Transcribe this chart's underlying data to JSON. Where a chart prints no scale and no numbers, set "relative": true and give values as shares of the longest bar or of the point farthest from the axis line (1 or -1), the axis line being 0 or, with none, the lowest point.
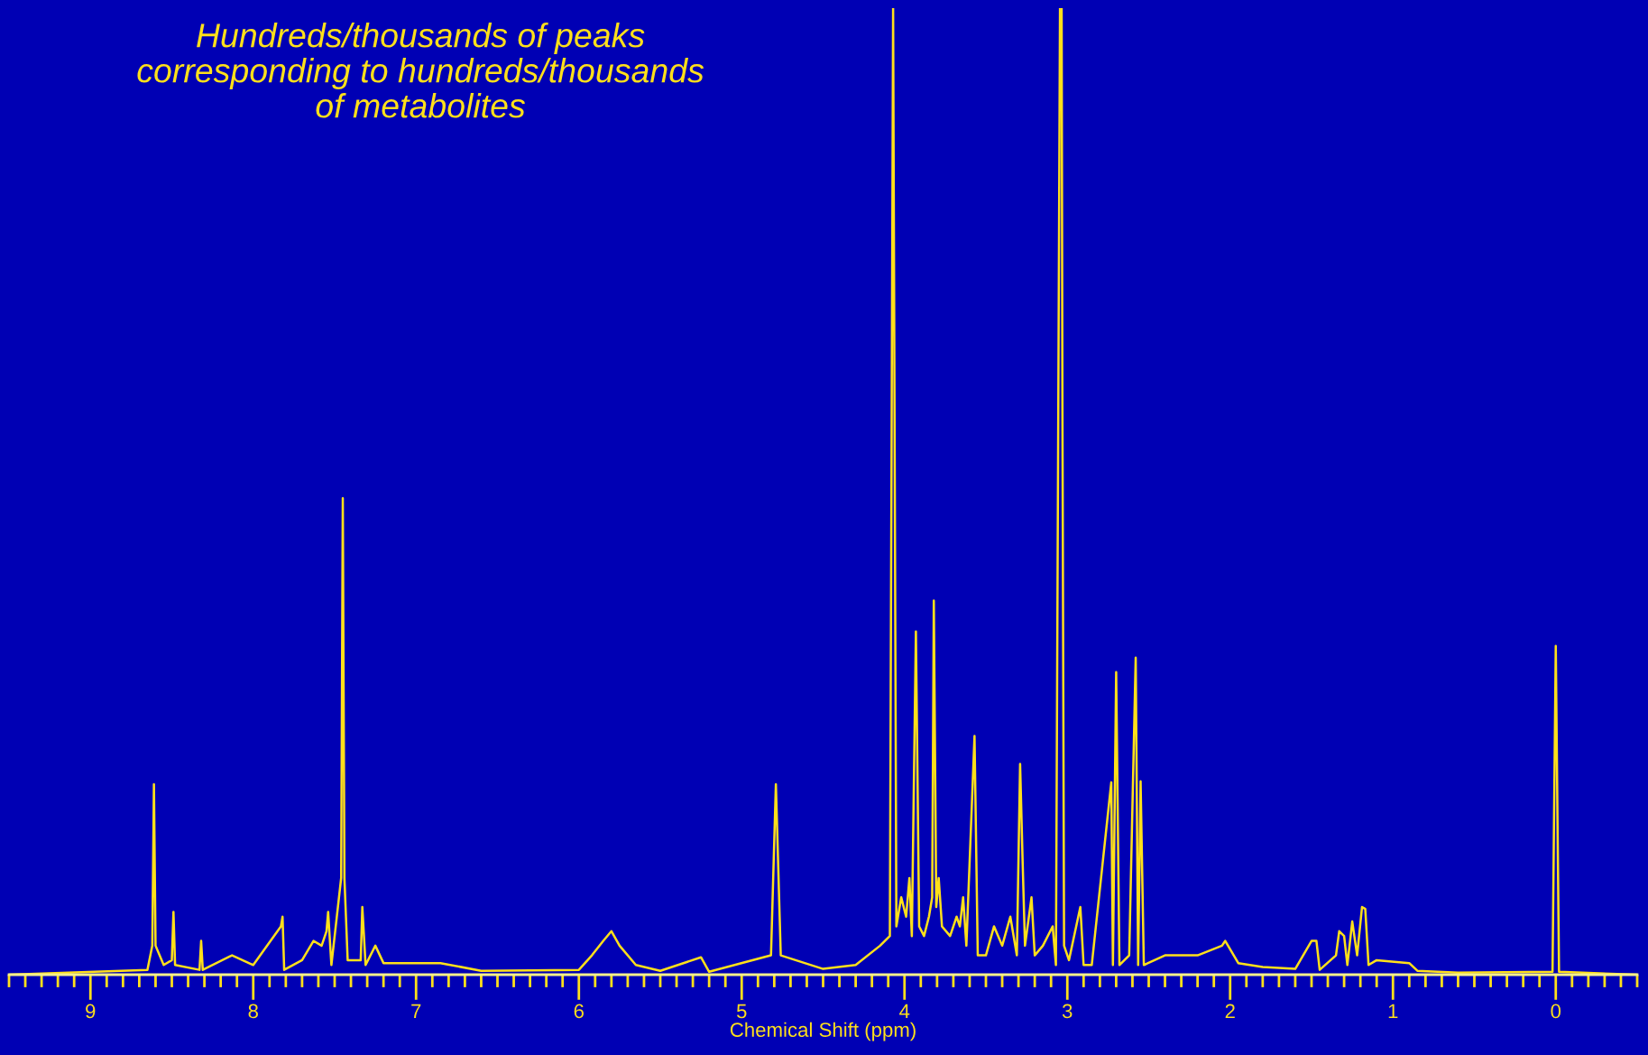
{
  "chart_data": {
    "type": "line",
    "relative": true,
    "xlabel": "Chemical Shift (ppm)",
    "annotations": [
      "Hundreds/thousands of peaks\ncorresponding to hundreds/thousands\nof metabolites"
    ],
    "xlim": [
      9.5,
      -0.5
    ],
    "xticks": [
      9,
      8,
      7,
      6,
      5,
      4,
      3,
      2,
      1,
      0
    ],
    "grid": false,
    "legend": false,
    "marker": "none",
    "line_style": "solid",
    "series": [
      {
        "color": "#ffe01a",
        "x": [
          9.5,
          8.65,
          8.62,
          8.61,
          8.6,
          8.55,
          8.5,
          8.49,
          8.48,
          8.33,
          8.32,
          8.31,
          8.13,
          8.0,
          7.83,
          7.82,
          7.81,
          7.7,
          7.63,
          7.58,
          7.55,
          7.54,
          7.52,
          7.46,
          7.45,
          7.44,
          7.42,
          7.34,
          7.33,
          7.31,
          7.25,
          7.2,
          7.0,
          6.85,
          6.6,
          6.0,
          5.92,
          5.85,
          5.8,
          5.75,
          5.65,
          5.5,
          5.25,
          5.2,
          4.82,
          4.79,
          4.76,
          4.5,
          4.3,
          4.15,
          4.09,
          4.07,
          4.05,
          4.02,
          3.99,
          3.97,
          3.955,
          3.93,
          3.91,
          3.88,
          3.85,
          3.83,
          3.82,
          3.805,
          3.79,
          3.77,
          3.72,
          3.68,
          3.66,
          3.64,
          3.62,
          3.57,
          3.55,
          3.5,
          3.45,
          3.4,
          3.35,
          3.31,
          3.29,
          3.275,
          3.26,
          3.22,
          3.2,
          3.15,
          3.09,
          3.07,
          3.045,
          3.035,
          3.03,
          3.02,
          2.99,
          2.92,
          2.9,
          2.85,
          2.73,
          2.72,
          2.7,
          2.68,
          2.62,
          2.58,
          2.565,
          2.55,
          2.53,
          2.4,
          2.3,
          2.2,
          2.05,
          2.03,
          1.95,
          1.8,
          1.6,
          1.5,
          1.47,
          1.45,
          1.35,
          1.33,
          1.3,
          1.28,
          1.25,
          1.22,
          1.19,
          1.17,
          1.15,
          1.1,
          0.9,
          0.85,
          0.6,
          0.02,
          0.0,
          -0.02,
          -0.5
        ],
        "values": [
          0,
          0.005,
          0.03,
          0.197,
          0.03,
          0.01,
          0.015,
          0.065,
          0.01,
          0.005,
          0.035,
          0.005,
          0.02,
          0.01,
          0.05,
          0.06,
          0.005,
          0.015,
          0.035,
          0.03,
          0.045,
          0.065,
          0.01,
          0.1,
          0.493,
          0.1,
          0.015,
          0.015,
          0.07,
          0.01,
          0.03,
          0.012,
          0.012,
          0.012,
          0.004,
          0.005,
          0.02,
          0.035,
          0.045,
          0.03,
          0.01,
          0.004,
          0.018,
          0.003,
          0.02,
          0.197,
          0.02,
          0.006,
          0.01,
          0.03,
          0.04,
          1,
          0.05,
          0.08,
          0.06,
          0.1,
          0.04,
          0.355,
          0.05,
          0.04,
          0.06,
          0.08,
          0.387,
          0.07,
          0.1,
          0.05,
          0.04,
          0.06,
          0.05,
          0.08,
          0.03,
          0.247,
          0.02,
          0.02,
          0.05,
          0.03,
          0.06,
          0.02,
          0.218,
          0.12,
          0.03,
          0.08,
          0.02,
          0.03,
          0.05,
          0.01,
          1,
          1,
          0.584,
          0.03,
          0.015,
          0.07,
          0.01,
          0.01,
          0.199,
          0.01,
          0.313,
          0.01,
          0.02,
          0.328,
          0.01,
          0.2,
          0.01,
          0.02,
          0.02,
          0.02,
          0.03,
          0.035,
          0.012,
          0.008,
          0.006,
          0.035,
          0.035,
          0.005,
          0.02,
          0.045,
          0.04,
          0.01,
          0.055,
          0.02,
          0.07,
          0.068,
          0.01,
          0.015,
          0.012,
          0.004,
          0.002,
          0.003,
          0.34,
          0.003,
          0
        ]
      }
    ]
  }
}
